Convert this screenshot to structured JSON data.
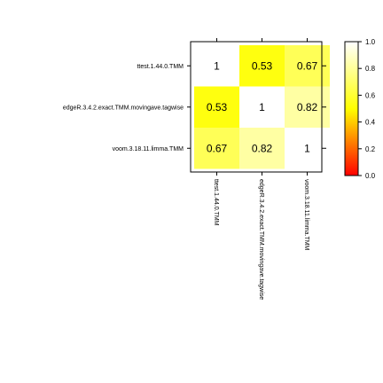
{
  "chart_data": {
    "type": "heatmap",
    "rows": [
      "ttest.1.44.0.TMM",
      "edgeR.3.4.2.exact.TMM.movingave.tagwise",
      "voom.3.18.11.limma.TMM"
    ],
    "columns": [
      "ttest.1.44.0.TMM",
      "edgeR.3.4.2.exact.TMM.movingave.tagwise",
      "voom.3.18.11.limma.TMM"
    ],
    "values": [
      [
        1,
        0.53,
        0.67
      ],
      [
        0.53,
        1,
        0.82
      ],
      [
        0.67,
        0.82,
        1
      ]
    ],
    "cell_labels": [
      [
        "1",
        "0.53",
        "0.67"
      ],
      [
        "0.53",
        "1",
        "0.82"
      ],
      [
        "0.67",
        "0.82",
        "1"
      ]
    ],
    "color_scale": {
      "range": [
        0,
        1
      ],
      "colors": [
        "#ff0000",
        "#ffff00",
        "#ffffff"
      ],
      "ticks": [
        "0.0",
        "0.2",
        "0.4",
        "0.6",
        "0.8",
        "1.0"
      ],
      "tick_values": [
        0,
        0.2,
        0.4,
        0.6,
        0.8,
        1.0
      ],
      "placement": "right"
    },
    "grid": false
  }
}
